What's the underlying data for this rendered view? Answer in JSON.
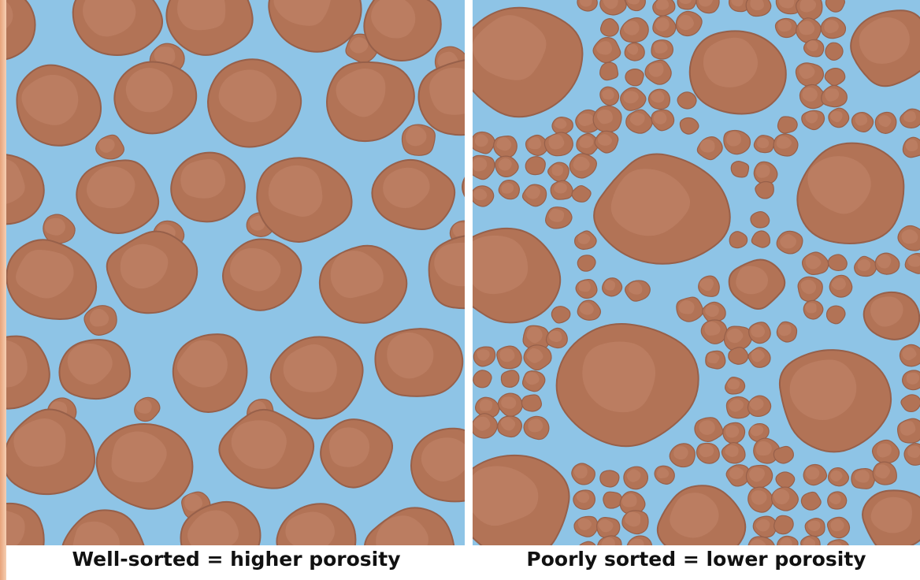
{
  "captions": {
    "left": "Well-sorted = higher porosity",
    "right": "Poorly sorted = lower porosity"
  }
}
